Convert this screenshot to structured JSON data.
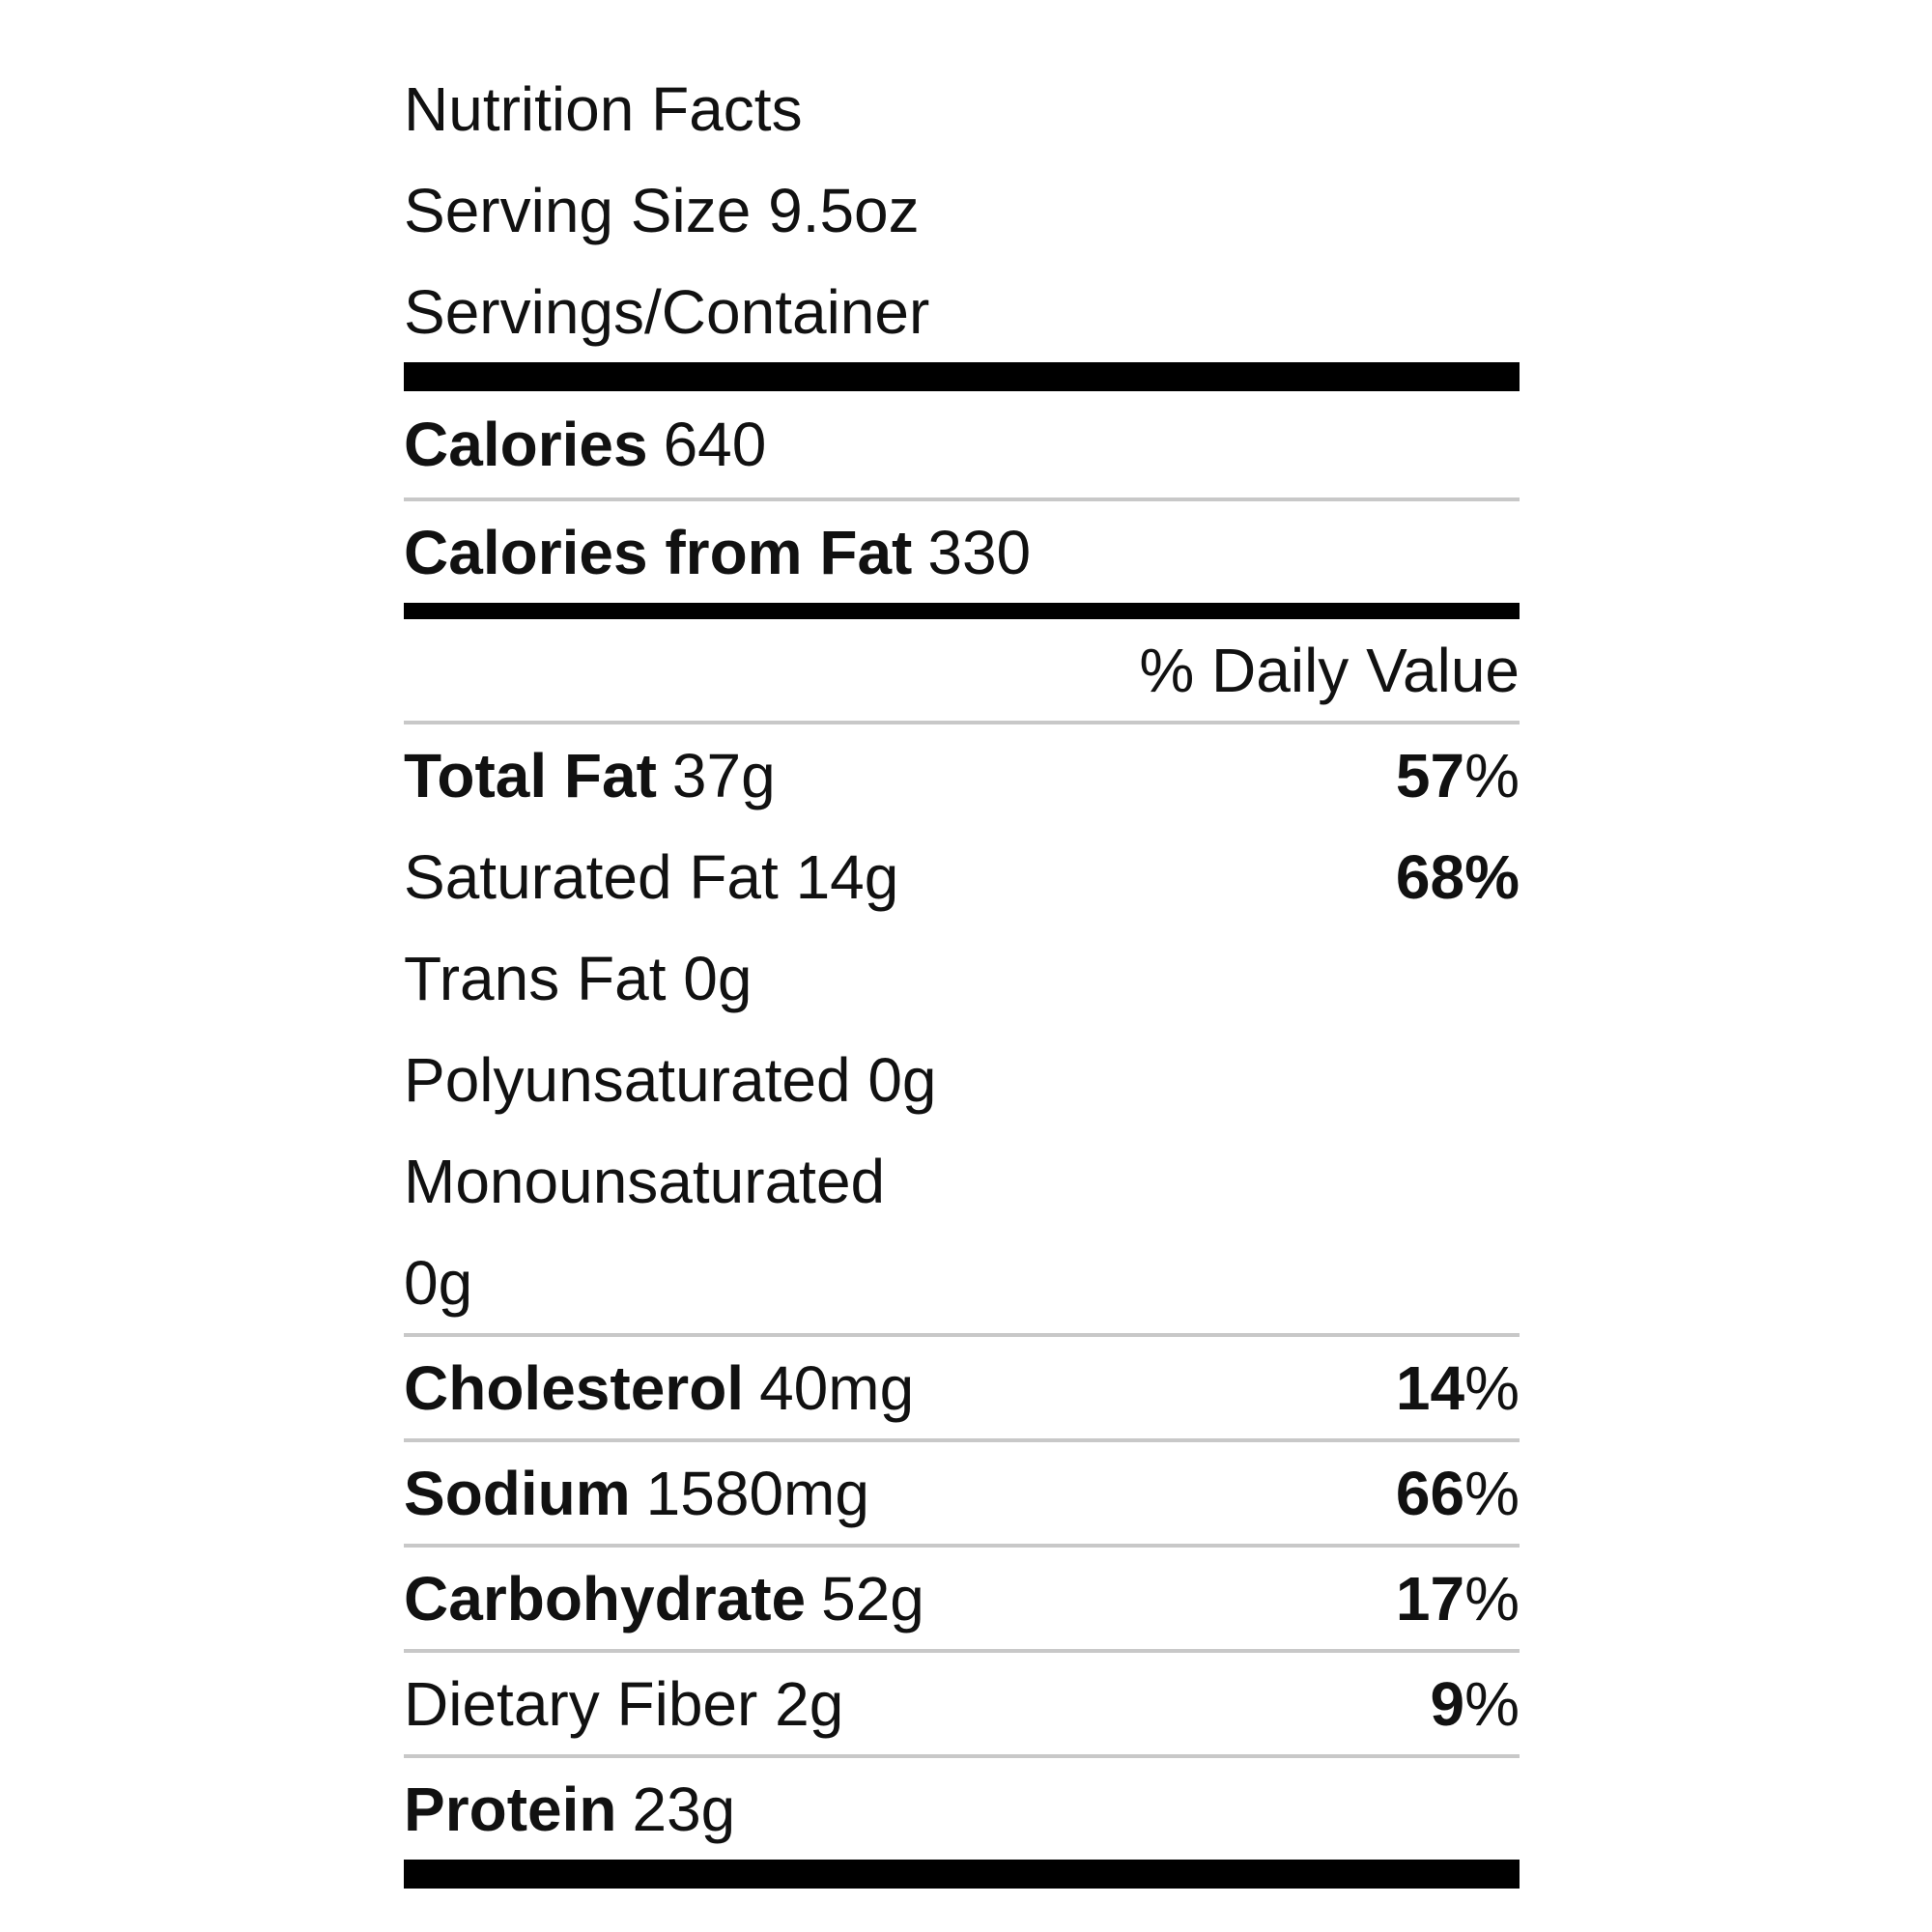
{
  "header": {
    "title": "Nutrition Facts",
    "serving_size": "Serving Size 9.5oz",
    "servings_per_container": "Servings/Container"
  },
  "calories": {
    "label": "Calories",
    "value": "640"
  },
  "calories_from_fat": {
    "label": "Calories from Fat",
    "value": "330"
  },
  "daily_value_header": "% Daily Value",
  "nutrients": {
    "total_fat": {
      "label": "Total Fat",
      "amount": "37g",
      "dv_num": "57",
      "dv_pct": "%"
    },
    "saturated_fat": {
      "label": "Saturated Fat 14g",
      "dv": "68%"
    },
    "trans_fat": {
      "label": "Trans Fat 0g"
    },
    "polyunsaturated": {
      "label": "Polyunsaturated 0g"
    },
    "monounsaturated": {
      "label_line1": "Monounsaturated",
      "label_line2": "0g"
    },
    "cholesterol": {
      "label": "Cholesterol",
      "amount": "40mg",
      "dv_num": "14",
      "dv_pct": "%"
    },
    "sodium": {
      "label": "Sodium",
      "amount": "1580mg",
      "dv_num": "66",
      "dv_pct": "%"
    },
    "carbohydrate": {
      "label": "Carbohydrate",
      "amount": "52g",
      "dv_num": "17",
      "dv_pct": "%"
    },
    "dietary_fiber": {
      "label": "Dietary Fiber 2g",
      "dv_num": "9",
      "dv_pct": "%"
    },
    "protein": {
      "label": "Protein",
      "amount": "23g"
    }
  }
}
